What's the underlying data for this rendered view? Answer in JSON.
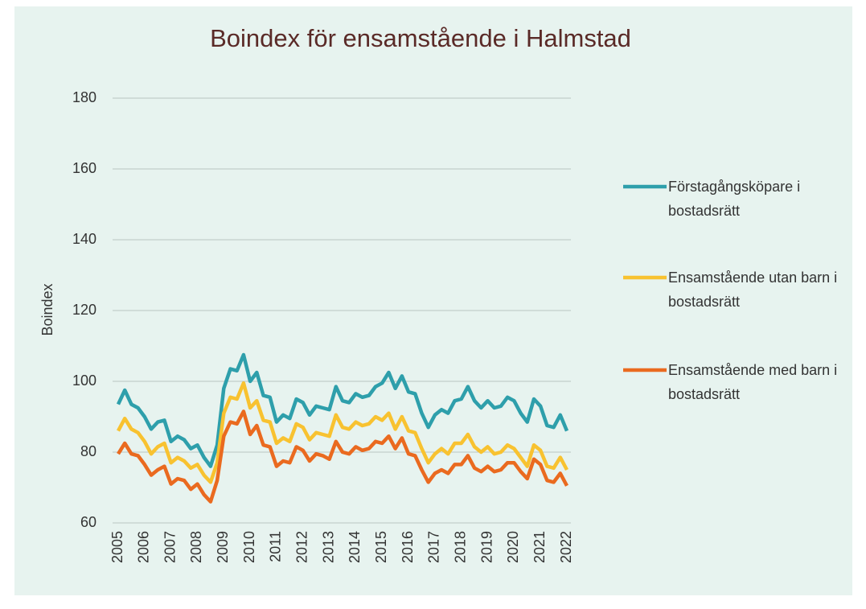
{
  "chart_data": {
    "type": "line",
    "title": "Boindex för ensamstående i Halmstad",
    "y_label": "Boindex",
    "categories": [
      "2005",
      null,
      null,
      null,
      "2006",
      null,
      null,
      null,
      "2007",
      null,
      null,
      null,
      "2008",
      null,
      null,
      null,
      "2009",
      null,
      null,
      null,
      "2010",
      null,
      null,
      null,
      "2011",
      null,
      null,
      null,
      "2012",
      null,
      null,
      null,
      "2013",
      null,
      null,
      null,
      "2014",
      null,
      null,
      null,
      "2015",
      null,
      null,
      null,
      "2016",
      null,
      null,
      null,
      "2017",
      null,
      null,
      null,
      "2018",
      null,
      null,
      null,
      "2019",
      null,
      null,
      null,
      "2020",
      null,
      null,
      null,
      "2021",
      null,
      null,
      null,
      "2022"
    ],
    "ylim": [
      60,
      180
    ],
    "yticks": [
      60,
      80,
      100,
      120,
      140,
      160,
      180
    ],
    "grid": true,
    "legend": "right",
    "series": [
      {
        "name": "Förstagångsköpare i bostadsrätt",
        "color": "#2e9fab",
        "values": [
          93.5,
          97.5,
          93.5,
          92.5,
          90,
          86.5,
          88.5,
          89,
          83,
          84.5,
          83.5,
          81,
          82,
          78.5,
          76,
          82,
          98,
          103.5,
          103,
          107.5,
          100,
          102.5,
          96,
          95.5,
          88.5,
          90.5,
          89.5,
          95,
          94,
          90.5,
          93,
          92.5,
          92,
          98.5,
          94.5,
          94,
          96.5,
          95.5,
          96,
          98.5,
          99.5,
          102.5,
          98,
          101.5,
          97,
          96.5,
          91,
          87,
          90.5,
          92,
          91,
          94.5,
          95,
          98.5,
          94.5,
          92.5,
          94.5,
          92.5,
          93,
          95.5,
          94.5,
          91,
          88.5,
          95,
          93,
          87.5,
          87,
          90.5,
          86
        ]
      },
      {
        "name": "Ensamstående utan barn i bostadsrätt",
        "color": "#f8c230",
        "values": [
          86,
          89.5,
          86.5,
          85.5,
          83,
          79.5,
          81.5,
          82.5,
          77,
          78.5,
          77.5,
          75.5,
          76.5,
          73.5,
          71.5,
          77,
          91,
          95.5,
          95,
          99.5,
          92.5,
          94.5,
          89,
          88.5,
          82.5,
          84,
          83,
          88,
          87,
          83.5,
          85.5,
          85,
          84.5,
          90.5,
          87,
          86.5,
          88.5,
          87.5,
          88,
          90,
          89,
          91,
          86.5,
          90,
          86,
          85.5,
          81,
          77,
          79.5,
          81,
          79.5,
          82.5,
          82.5,
          85,
          81.5,
          80,
          81.5,
          79.5,
          80,
          82,
          81,
          78.5,
          76,
          82,
          80.5,
          76,
          75.5,
          78.5,
          75
        ]
      },
      {
        "name": "Ensamstående med barn i bostadsrätt",
        "color": "#ea6a1f",
        "values": [
          79.5,
          82.5,
          79.5,
          79,
          76.5,
          73.5,
          75,
          76,
          71,
          72.5,
          72,
          69.5,
          71,
          68,
          66,
          72,
          84.5,
          88.5,
          88,
          91.5,
          85,
          87.5,
          82,
          81.5,
          76,
          77.5,
          77,
          81.5,
          80.5,
          77.5,
          79.5,
          79,
          78,
          83,
          80,
          79.5,
          81.5,
          80.5,
          81,
          83,
          82.5,
          84.5,
          81,
          84,
          79.5,
          79,
          75,
          71.5,
          74,
          75,
          74,
          76.5,
          76.5,
          79,
          75.5,
          74.5,
          76,
          74.5,
          75,
          77,
          77,
          74.5,
          72.5,
          78,
          76.5,
          72,
          71.5,
          74,
          70.5
        ]
      }
    ]
  }
}
